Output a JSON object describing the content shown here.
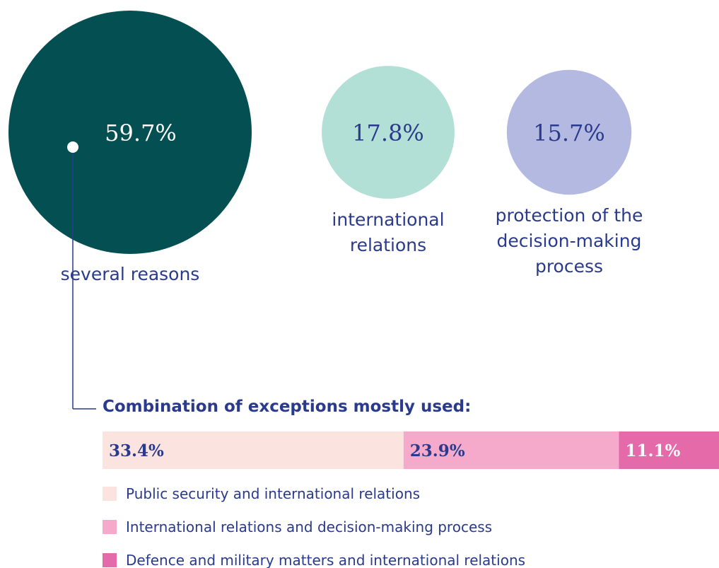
{
  "chart_data": [
    {
      "type": "bubble",
      "categories": [
        "several reasons",
        "international relations",
        "protection of the decision-making process"
      ],
      "values": [
        59.7,
        17.8,
        15.7
      ],
      "value_labels": [
        "59.7%",
        "17.8%",
        "15.7%"
      ],
      "colors": [
        "#034f51",
        "#b3e0d6",
        "#b3b9e0"
      ]
    },
    {
      "type": "stacked-bar",
      "title": "Combination of exceptions mostly used:",
      "series": [
        {
          "name": "Public security and international relations",
          "color": "#fbe3e0",
          "values": [
            33.4
          ],
          "value_labels": [
            "33.4%"
          ]
        },
        {
          "name": "International relations and decision-making process",
          "color": "#f6aacb",
          "values": [
            23.9
          ],
          "value_labels": [
            "23.9%"
          ]
        },
        {
          "name": "Defence and military matters and international relations",
          "color": "#e56aa9",
          "values": [
            11.1
          ],
          "value_labels": [
            "11.1%"
          ]
        }
      ]
    }
  ]
}
